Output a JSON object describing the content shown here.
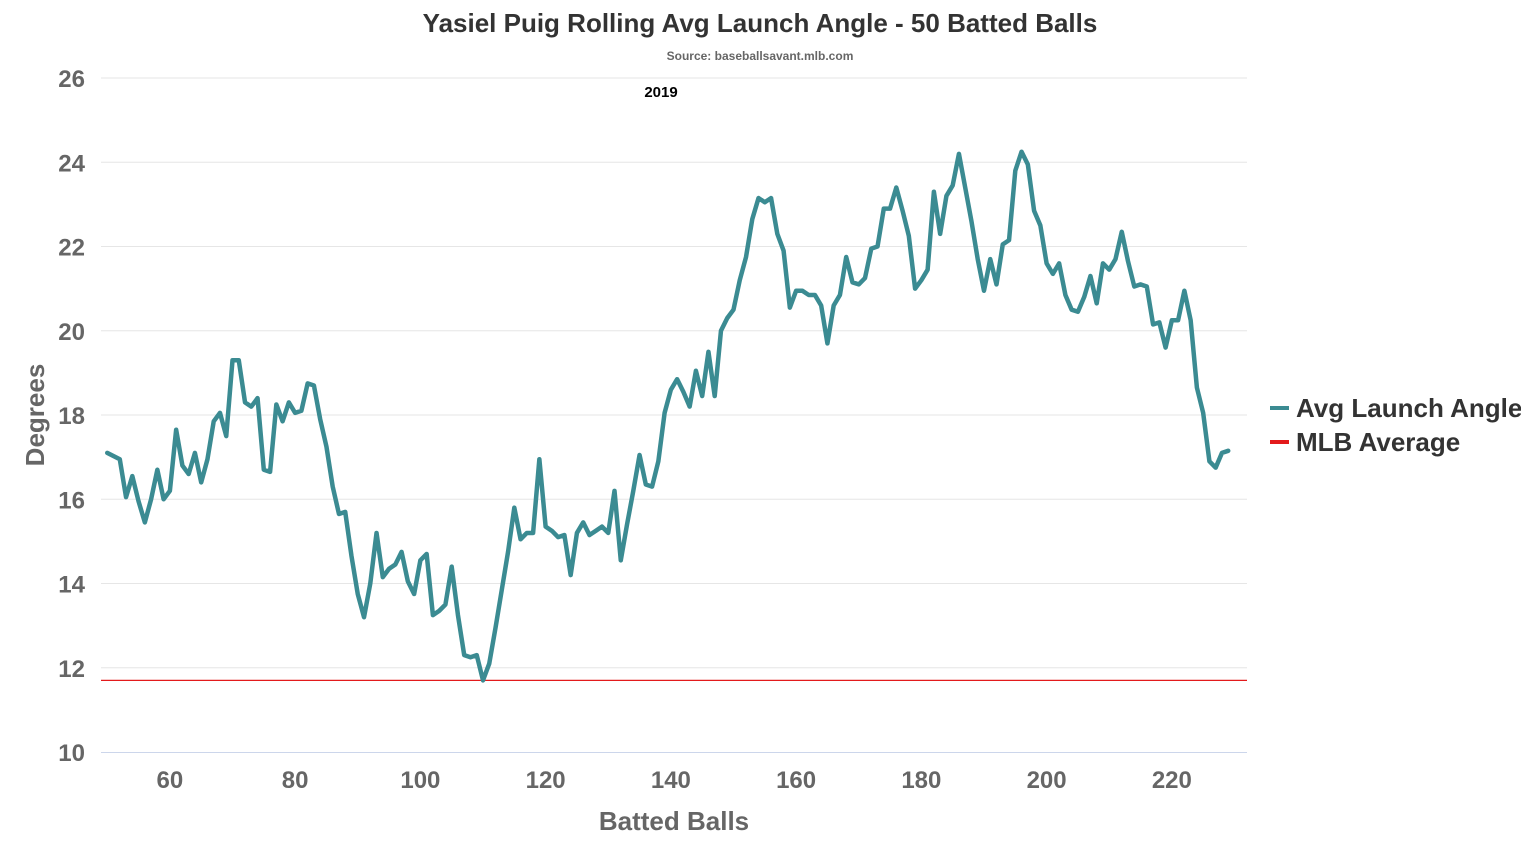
{
  "chart_data": {
    "type": "line",
    "title": "Yasiel Puig Rolling Avg Launch Angle - 50 Batted Balls",
    "subtitle": "Source: baseballsavant.mlb.com",
    "annotation": "2019",
    "xlabel": "Batted Balls",
    "ylabel": "Degrees",
    "xlim": [
      49,
      232
    ],
    "ylim": [
      10,
      26
    ],
    "x_ticks": [
      60,
      80,
      100,
      120,
      140,
      160,
      180,
      200,
      220
    ],
    "y_ticks": [
      10,
      12,
      14,
      16,
      18,
      20,
      22,
      24,
      26
    ],
    "grid": true,
    "legend_position": "right",
    "series": [
      {
        "name": "Avg Launch Angle",
        "color": "#3b8b92",
        "x": [
          50,
          52,
          53,
          54,
          55,
          56,
          57,
          58,
          59,
          60,
          61,
          62,
          63,
          64,
          65,
          66,
          67,
          68,
          69,
          70,
          71,
          72,
          73,
          74,
          75,
          76,
          77,
          78,
          79,
          80,
          81,
          82,
          83,
          84,
          85,
          86,
          87,
          88,
          89,
          90,
          91,
          92,
          93,
          94,
          95,
          96,
          97,
          98,
          99,
          100,
          101,
          102,
          103,
          104,
          105,
          106,
          107,
          108,
          109,
          110,
          111,
          112,
          113,
          114,
          115,
          116,
          117,
          118,
          119,
          120,
          121,
          122,
          123,
          124,
          125,
          126,
          127,
          128,
          129,
          130,
          131,
          132,
          133,
          134,
          135,
          136,
          137,
          138,
          139,
          140,
          141,
          142,
          143,
          144,
          145,
          146,
          147,
          148,
          149,
          150,
          151,
          152,
          153,
          154,
          155,
          156,
          157,
          158,
          159,
          160,
          161,
          162,
          163,
          164,
          165,
          166,
          167,
          168,
          169,
          170,
          171,
          172,
          173,
          174,
          175,
          176,
          177,
          178,
          179,
          180,
          181,
          182,
          183,
          184,
          185,
          186,
          187,
          188,
          189,
          190,
          191,
          192,
          193,
          194,
          195,
          196,
          197,
          198,
          199,
          200,
          201,
          202,
          203,
          204,
          205,
          206,
          207,
          208,
          209,
          210,
          211,
          212,
          213,
          214,
          215,
          216,
          217,
          218,
          219,
          220,
          221,
          222,
          223,
          224,
          225,
          226,
          227,
          228,
          229
        ],
        "values": [
          17.1,
          16.95,
          16.05,
          16.55,
          15.95,
          15.45,
          16.0,
          16.7,
          16.0,
          16.2,
          17.65,
          16.8,
          16.6,
          17.1,
          16.4,
          16.95,
          17.85,
          18.05,
          17.5,
          19.3,
          19.3,
          18.3,
          18.2,
          18.4,
          16.7,
          16.65,
          18.25,
          17.85,
          18.3,
          18.05,
          18.1,
          18.75,
          18.7,
          17.9,
          17.25,
          16.3,
          15.65,
          15.7,
          14.65,
          13.75,
          13.2,
          14.0,
          15.2,
          14.15,
          14.35,
          14.45,
          14.75,
          14.05,
          13.75,
          14.55,
          14.7,
          13.25,
          13.35,
          13.5,
          14.4,
          13.25,
          12.3,
          12.25,
          12.3,
          11.7,
          12.1,
          12.95,
          13.85,
          14.75,
          15.8,
          15.05,
          15.2,
          15.2,
          16.95,
          15.35,
          15.25,
          15.1,
          15.15,
          14.2,
          15.2,
          15.45,
          15.15,
          15.25,
          15.35,
          15.2,
          16.2,
          14.55,
          15.4,
          16.2,
          17.05,
          16.35,
          16.3,
          16.9,
          18.05,
          18.6,
          18.85,
          18.55,
          18.2,
          19.05,
          18.45,
          19.5,
          18.45,
          20.0,
          20.3,
          20.5,
          21.2,
          21.75,
          22.65,
          23.15,
          23.05,
          23.15,
          22.3,
          21.9,
          20.55,
          20.95,
          20.95,
          20.85,
          20.85,
          20.6,
          19.7,
          20.6,
          20.85,
          21.75,
          21.15,
          21.1,
          21.25,
          21.95,
          22.0,
          22.9,
          22.9,
          23.4,
          22.85,
          22.25,
          21.0,
          21.2,
          21.45,
          23.3,
          22.3,
          23.2,
          23.45,
          24.2,
          23.4,
          22.6,
          21.7,
          20.95,
          21.7,
          21.1,
          22.05,
          22.15,
          23.8,
          24.25,
          23.95,
          22.85,
          22.5,
          21.6,
          21.35,
          21.6,
          20.85,
          20.5,
          20.45,
          20.8,
          21.3,
          20.65,
          21.6,
          21.45,
          21.7,
          22.35,
          21.65,
          21.05,
          21.1,
          21.05,
          20.15,
          20.2,
          19.6,
          20.25,
          20.25,
          20.95,
          20.25,
          18.65,
          18.05,
          16.9,
          16.75,
          17.1,
          17.15
        ]
      },
      {
        "name": "MLB Average",
        "color": "#e31a1c",
        "x": [
          49,
          232
        ],
        "values": [
          11.7,
          11.7
        ]
      }
    ]
  }
}
